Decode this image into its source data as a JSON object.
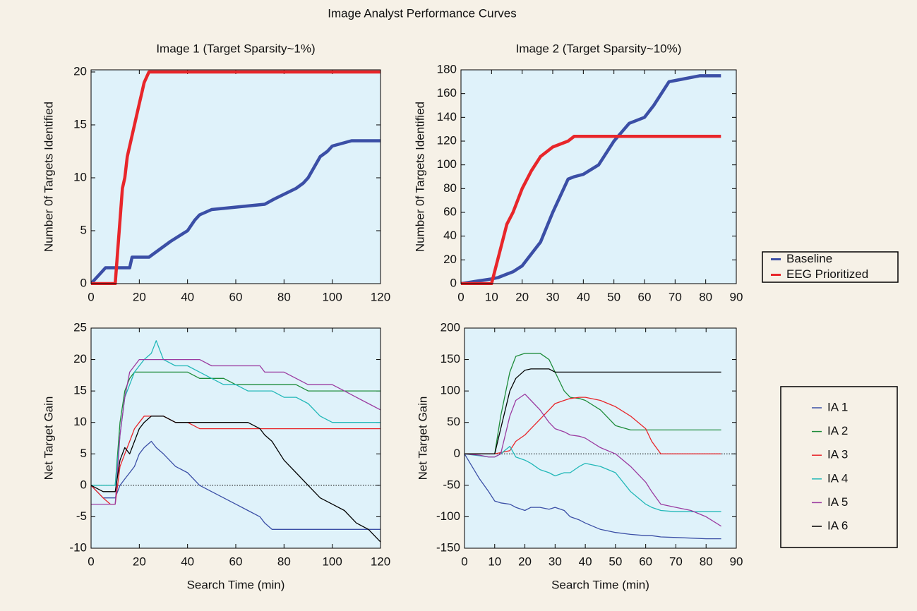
{
  "title": "Image Analyst Performance Curves",
  "chart_data": [
    {
      "type": "line",
      "title": "Image 1 (Target Sparsity~1%)",
      "y_label": "Number 0f Targets Identified",
      "x": [
        0,
        2,
        4,
        6,
        10,
        11,
        12,
        13,
        14,
        15,
        16,
        17,
        18,
        19,
        20,
        21,
        22,
        23,
        24,
        33,
        40,
        43,
        45,
        50,
        72,
        76,
        85,
        88,
        90,
        95,
        98,
        100,
        108,
        120
      ],
      "series": [
        {
          "name": "Baseline",
          "color": "#3b4fa6",
          "values": [
            0,
            0.5,
            1,
            1.5,
            1.5,
            1.5,
            1.5,
            1.5,
            1.5,
            1.5,
            1.5,
            2.5,
            2.5,
            2.5,
            2.5,
            2.5,
            2.5,
            2.5,
            2.5,
            4,
            5,
            6,
            6.5,
            7,
            7.5,
            8,
            9,
            9.5,
            10,
            12,
            12.5,
            13,
            13.5,
            13.5
          ]
        },
        {
          "name": "EEG Prioritized",
          "color": "#e8262a",
          "values": [
            0,
            0,
            0,
            0,
            0,
            3,
            6,
            9,
            10,
            12,
            13,
            14,
            15,
            16,
            17,
            18,
            19,
            19.5,
            20,
            20,
            20,
            20,
            20,
            20,
            20,
            20,
            20,
            20,
            20,
            20,
            20,
            20,
            20,
            20
          ]
        }
      ],
      "line_width": 4.5,
      "xlim": [
        0,
        120
      ],
      "xticks": [
        0,
        20,
        40,
        60,
        80,
        100,
        120
      ],
      "ylim": [
        0,
        20.2
      ],
      "yticks": [
        0,
        5,
        10,
        15,
        20
      ]
    },
    {
      "type": "line",
      "title": "Image 2 (Target Sparsity~10%)",
      "y_label": "Number 0f Targets Identified",
      "x": [
        0,
        5,
        10,
        12,
        15,
        17,
        20,
        23,
        26,
        30,
        35,
        37,
        40,
        45,
        50,
        55,
        60,
        63,
        68,
        72,
        78,
        85
      ],
      "series": [
        {
          "name": "Baseline",
          "color": "#3b4fa6",
          "values": [
            0,
            2,
            4,
            5,
            8,
            10,
            15,
            25,
            35,
            60,
            88,
            90,
            92,
            100,
            120,
            135,
            140,
            150,
            170,
            172,
            175,
            175
          ]
        },
        {
          "name": "EEG Prioritized",
          "color": "#e8262a",
          "values": [
            0,
            0,
            0,
            20,
            50,
            60,
            80,
            95,
            107,
            115,
            120,
            124,
            124,
            124,
            124,
            124,
            124,
            124,
            124,
            124,
            124,
            124
          ]
        }
      ],
      "line_width": 4.5,
      "legend": "right",
      "xlim": [
        0,
        90
      ],
      "xticks": [
        0,
        10,
        20,
        30,
        40,
        50,
        60,
        70,
        80,
        90
      ],
      "ylim": [
        0,
        180
      ],
      "yticks": [
        0,
        20,
        40,
        60,
        80,
        100,
        120,
        140,
        160,
        180
      ]
    },
    {
      "type": "line",
      "y_label": "Net Target Gain",
      "x_label": "Search Time (min)",
      "x": [
        0,
        5,
        8,
        10,
        12,
        14,
        16,
        18,
        20,
        22,
        25,
        27,
        30,
        35,
        40,
        45,
        50,
        55,
        60,
        65,
        70,
        72,
        75,
        80,
        85,
        90,
        95,
        100,
        105,
        110,
        115,
        120
      ],
      "series": [
        {
          "name": "IA 1",
          "color": "#3b4fa6",
          "values": [
            0,
            -2,
            -2,
            -2,
            0,
            1,
            2,
            3,
            5,
            6,
            7,
            6,
            5,
            3,
            2,
            0,
            -1,
            -2,
            -3,
            -4,
            -5,
            -6,
            -7,
            -7,
            -7,
            -7,
            -7,
            -7,
            -7,
            -7,
            -7,
            -7
          ]
        },
        {
          "name": "IA 2",
          "color": "#1e8c3a",
          "values": [
            0,
            0,
            0,
            0,
            10,
            15,
            17,
            18,
            18,
            18,
            18,
            18,
            18,
            18,
            18,
            17,
            17,
            17,
            16,
            16,
            16,
            16,
            16,
            16,
            16,
            15,
            15,
            15,
            15,
            15,
            15,
            15
          ]
        },
        {
          "name": "IA 3",
          "color": "#e8262a",
          "values": [
            0,
            -2,
            -3,
            -3,
            3,
            5,
            7,
            9,
            10,
            11,
            11,
            11,
            11,
            10,
            10,
            9,
            9,
            9,
            9,
            9,
            9,
            9,
            9,
            9,
            9,
            9,
            9,
            9,
            9,
            9,
            9,
            9
          ]
        },
        {
          "name": "IA 4",
          "color": "#22b8b8",
          "values": [
            0,
            0,
            0,
            0,
            8,
            14,
            16,
            18,
            19,
            20,
            21,
            23,
            20,
            19,
            19,
            18,
            17,
            16,
            16,
            15,
            15,
            15,
            15,
            14,
            14,
            13,
            11,
            10,
            10,
            10,
            10,
            10
          ]
        },
        {
          "name": "IA 5",
          "color": "#9b3ba0",
          "values": [
            -3,
            -3,
            -3,
            -3,
            8,
            14,
            18,
            19,
            20,
            20,
            20,
            20,
            20,
            20,
            20,
            20,
            19,
            19,
            19,
            19,
            19,
            18,
            18,
            18,
            17,
            16,
            16,
            16,
            15,
            14,
            13,
            12
          ]
        },
        {
          "name": "IA 6",
          "color": "#000000",
          "values": [
            0,
            -1,
            -1,
            -1,
            4,
            6,
            5,
            7,
            9,
            10,
            11,
            11,
            11,
            10,
            10,
            10,
            10,
            10,
            10,
            10,
            9,
            8,
            7,
            4,
            2,
            0,
            -2,
            -3,
            -4,
            -6,
            -7,
            -9
          ]
        }
      ],
      "line_width": 1.3,
      "hline": 0,
      "xlim": [
        0,
        120
      ],
      "xticks": [
        0,
        20,
        40,
        60,
        80,
        100,
        120
      ],
      "ylim": [
        -10,
        25
      ],
      "yticks": [
        -10,
        -5,
        0,
        5,
        10,
        15,
        20,
        25
      ]
    },
    {
      "type": "line",
      "y_label": "Net Target Gain",
      "x_label": "Search Time (min)",
      "x": [
        0,
        5,
        8,
        10,
        12,
        15,
        17,
        20,
        22,
        25,
        28,
        30,
        33,
        35,
        38,
        40,
        45,
        50,
        55,
        60,
        62,
        65,
        70,
        75,
        80,
        85
      ],
      "series": [
        {
          "name": "IA 1",
          "color": "#3b4fa6",
          "values": [
            0,
            -40,
            -60,
            -75,
            -78,
            -80,
            -85,
            -90,
            -85,
            -85,
            -88,
            -85,
            -90,
            -100,
            -105,
            -110,
            -120,
            -125,
            -128,
            -130,
            -130,
            -132,
            -133,
            -134,
            -135,
            -135
          ]
        },
        {
          "name": "IA 2",
          "color": "#1e8c3a",
          "values": [
            0,
            0,
            0,
            0,
            60,
            130,
            155,
            160,
            160,
            160,
            150,
            130,
            100,
            90,
            88,
            85,
            70,
            45,
            38,
            38,
            38,
            38,
            38,
            38,
            38,
            38
          ]
        },
        {
          "name": "IA 3",
          "color": "#e8262a",
          "values": [
            0,
            0,
            0,
            0,
            2,
            5,
            20,
            30,
            40,
            55,
            70,
            80,
            85,
            88,
            90,
            90,
            85,
            75,
            60,
            40,
            20,
            0,
            0,
            0,
            0,
            0
          ]
        },
        {
          "name": "IA 4",
          "color": "#22b8b8",
          "values": [
            0,
            -3,
            -5,
            -5,
            0,
            12,
            -5,
            -10,
            -15,
            -25,
            -30,
            -35,
            -30,
            -30,
            -20,
            -15,
            -20,
            -30,
            -60,
            -80,
            -85,
            -90,
            -92,
            -92,
            -92,
            -92
          ]
        },
        {
          "name": "IA 5",
          "color": "#9b3ba0",
          "values": [
            0,
            -2,
            -5,
            -5,
            0,
            60,
            85,
            95,
            85,
            70,
            50,
            40,
            35,
            30,
            28,
            25,
            10,
            0,
            -20,
            -45,
            -60,
            -80,
            -85,
            -90,
            -100,
            -115
          ]
        },
        {
          "name": "IA 6",
          "color": "#000000",
          "values": [
            0,
            0,
            0,
            0,
            40,
            100,
            120,
            133,
            135,
            135,
            135,
            130,
            130,
            130,
            130,
            130,
            130,
            130,
            130,
            130,
            130,
            130,
            130,
            130,
            130,
            130
          ]
        }
      ],
      "line_width": 1.3,
      "hline": 0,
      "legend": "right",
      "xlim": [
        0,
        90
      ],
      "xticks": [
        0,
        10,
        20,
        30,
        40,
        50,
        60,
        70,
        80,
        90
      ],
      "ylim": [
        -150,
        200
      ],
      "yticks": [
        -150,
        -100,
        -50,
        0,
        50,
        100,
        150,
        200
      ]
    }
  ]
}
